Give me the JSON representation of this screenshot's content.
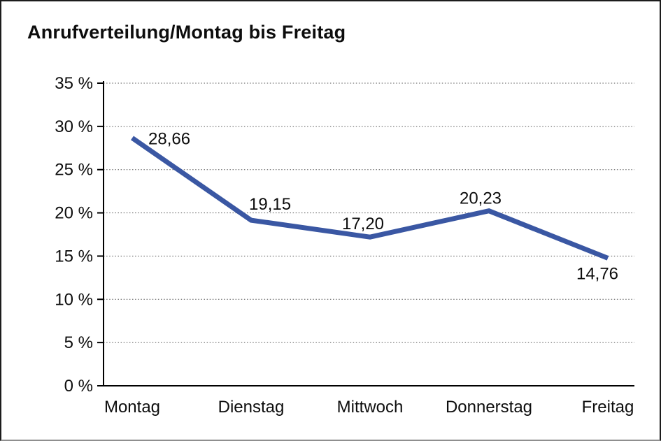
{
  "panel": {
    "title": "Anrufverteilung/Montag bis Freitag"
  },
  "chart_data": {
    "type": "line",
    "title": "Anrufverteilung/Montag bis Freitag",
    "categories": [
      "Montag",
      "Dienstag",
      "Mittwoch",
      "Donnerstag",
      "Freitag"
    ],
    "series": [
      {
        "name": "Anrufverteilung",
        "values": [
          28.66,
          19.15,
          17.2,
          20.23,
          14.76
        ]
      }
    ],
    "value_labels": [
      "28,66",
      "19,15",
      "17,20",
      "20,23",
      "14,76"
    ],
    "y_tick_values": [
      0,
      5,
      10,
      15,
      20,
      25,
      30,
      35
    ],
    "y_tick_labels": [
      "0 %",
      "5 %",
      "10 %",
      "15 %",
      "20 %",
      "25 %",
      "30 %",
      "35 %"
    ],
    "ylim": [
      0,
      35
    ],
    "xlabel": "",
    "ylabel": "",
    "grid": "horizontal-dotted",
    "legend": "none",
    "colors": {
      "line": "#3a57a3",
      "axis": "#000000",
      "gridline": "#565656",
      "text": "#0d0d0d"
    }
  }
}
